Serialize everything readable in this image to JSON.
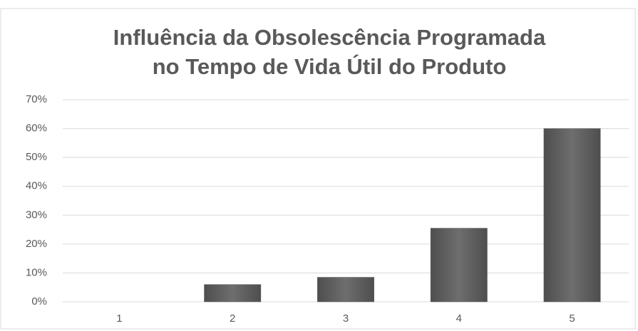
{
  "chart_data": {
    "type": "bar",
    "title": [
      "Influência da Obsolescência Programada",
      "no Tempo de Vida Útil do Produto"
    ],
    "categories": [
      "1",
      "2",
      "3",
      "4",
      "5"
    ],
    "values": [
      0,
      6,
      8.5,
      25.5,
      60
    ],
    "color": "#606060",
    "ylim": [
      0,
      70
    ],
    "yticks": [
      {
        "value": 0,
        "label": "0%"
      },
      {
        "value": 10,
        "label": "10%"
      },
      {
        "value": 20,
        "label": "20%"
      },
      {
        "value": 30,
        "label": "30%"
      },
      {
        "value": 40,
        "label": "40%"
      },
      {
        "value": 50,
        "label": "50%"
      },
      {
        "value": 60,
        "label": "60%"
      },
      {
        "value": 70,
        "label": "70%"
      }
    ],
    "grid": true
  }
}
